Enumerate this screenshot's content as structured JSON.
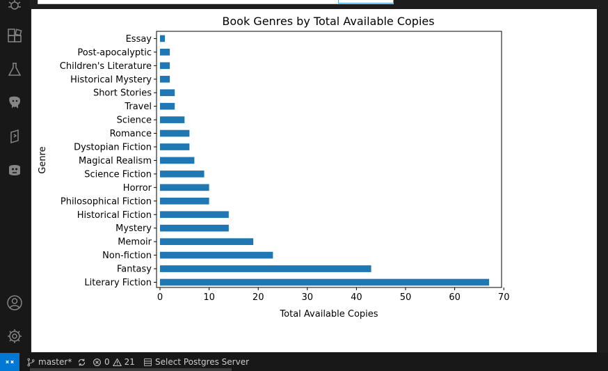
{
  "activity_bar": {
    "icons": [
      "debug-icon",
      "extensions-icon",
      "testing-icon",
      "postgres-icon",
      "remote-explorer-icon",
      "database-icon"
    ],
    "bottom_icons": [
      "account-icon",
      "settings-gear-icon"
    ]
  },
  "status_bar": {
    "branch": "master*",
    "errors": "0",
    "warnings": "21",
    "postgres": "Select Postgres Server"
  },
  "colors": {
    "bar": "#1f77b4",
    "status_accent": "#0078d4"
  },
  "chart_data": {
    "type": "bar",
    "orientation": "horizontal",
    "title": "Book Genres by Total Available Copies",
    "xlabel": "Total Available Copies",
    "ylabel": "Genre",
    "xlim": [
      0,
      70
    ],
    "xticks": [
      0,
      10,
      20,
      30,
      40,
      50,
      60,
      70
    ],
    "categories": [
      "Literary Fiction",
      "Fantasy",
      "Non-fiction",
      "Memoir",
      "Mystery",
      "Historical Fiction",
      "Philosophical Fiction",
      "Horror",
      "Science Fiction",
      "Magical Realism",
      "Dystopian Fiction",
      "Romance",
      "Science",
      "Travel",
      "Short Stories",
      "Historical Mystery",
      "Children's Literature",
      "Post-apocalyptic",
      "Essay"
    ],
    "values": [
      67,
      43,
      23,
      19,
      14,
      14,
      10,
      10,
      9,
      7,
      6,
      6,
      5,
      3,
      3,
      2,
      2,
      2,
      1
    ],
    "color": "#1f77b4",
    "grid": false
  }
}
